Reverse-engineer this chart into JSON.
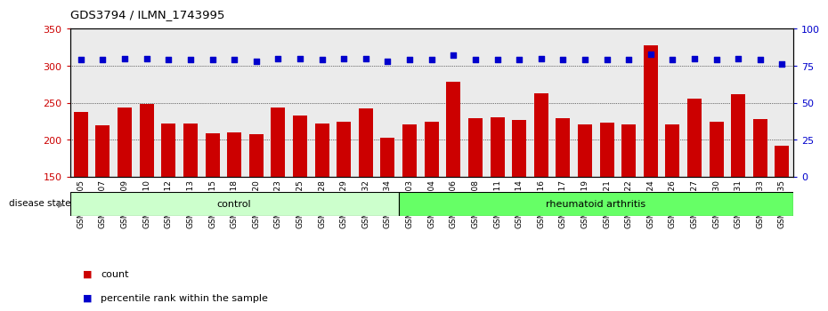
{
  "title": "GDS3794 / ILMN_1743995",
  "categories": [
    "GSM389705",
    "GSM389707",
    "GSM389709",
    "GSM389710",
    "GSM389712",
    "GSM389713",
    "GSM389715",
    "GSM389718",
    "GSM389720",
    "GSM389723",
    "GSM389725",
    "GSM389728",
    "GSM389729",
    "GSM389732",
    "GSM389734",
    "GSM389703",
    "GSM389704",
    "GSM389706",
    "GSM389708",
    "GSM389711",
    "GSM389714",
    "GSM389716",
    "GSM389717",
    "GSM389719",
    "GSM389721",
    "GSM389722",
    "GSM389724",
    "GSM389726",
    "GSM389727",
    "GSM389730",
    "GSM389731",
    "GSM389733",
    "GSM389735"
  ],
  "count_values": [
    237,
    219,
    244,
    248,
    222,
    222,
    209,
    210,
    207,
    244,
    233,
    222,
    224,
    242,
    203,
    220,
    224,
    278,
    229,
    230,
    227,
    263,
    229,
    221,
    223,
    221,
    327,
    221,
    256,
    224,
    261,
    228,
    192
  ],
  "percentile_values": [
    79,
    79,
    80,
    80,
    79,
    79,
    79,
    79,
    78,
    80,
    80,
    79,
    80,
    80,
    78,
    79,
    79,
    82,
    79,
    79,
    79,
    80,
    79,
    79,
    79,
    79,
    83,
    79,
    80,
    79,
    80,
    79,
    76
  ],
  "control_count": 15,
  "bar_color": "#cc0000",
  "dot_color": "#0000cc",
  "control_color": "#ccffcc",
  "ra_color": "#66ff66",
  "ylim_left": [
    150,
    350
  ],
  "ylim_right": [
    0,
    100
  ],
  "yticks_left": [
    150,
    200,
    250,
    300,
    350
  ],
  "yticks_right": [
    0,
    25,
    50,
    75,
    100
  ],
  "grid_values": [
    200,
    250,
    300
  ],
  "background_color": "#ffffff",
  "plot_bg_color": "#ebebeb"
}
